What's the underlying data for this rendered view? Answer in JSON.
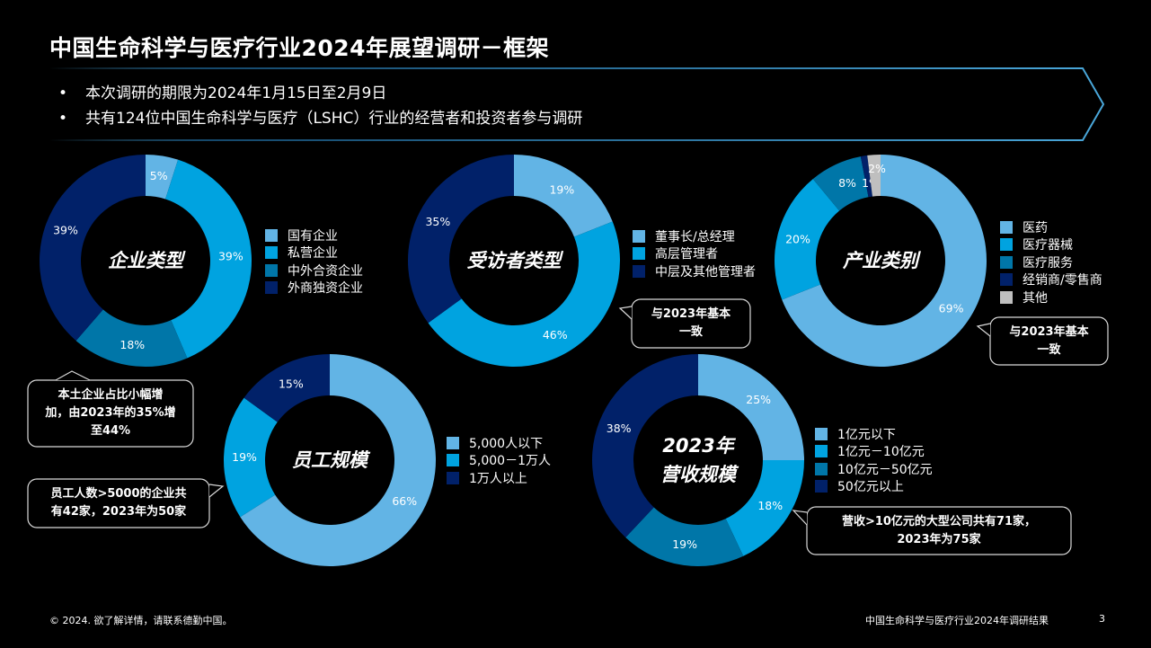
{
  "title": "中国生命科学与医疗行业2024年展望调研－框架",
  "bullets": [
    "本次调研的期限为2024年1月15日至2月9日",
    "共有124位中国生命科学与医疗（LSHC）行业的经营者和投资者参与调研"
  ],
  "colors": {
    "light_blue": "#62b4e5",
    "blue": "#00a3e0",
    "teal": "#0076a8",
    "navy": "#012169",
    "gray": "#bfbfbf",
    "banner_border": "#4aa8db"
  },
  "chart_data": [
    {
      "type": "pie",
      "donut": true,
      "title": "企业类型",
      "categories": [
        "国有企业",
        "私营企业",
        "中外合资企业",
        "外商独资企业"
      ],
      "values": [
        5,
        39,
        18,
        39
      ],
      "labels": [
        "5%",
        "39%",
        "18%",
        "39%"
      ],
      "colors": [
        "#62b4e5",
        "#00a3e0",
        "#0076a8",
        "#012169"
      ],
      "legend": "right"
    },
    {
      "type": "pie",
      "donut": true,
      "title": "受访者类型",
      "categories": [
        "董事长/总经理",
        "高层管理者",
        "中层及其他管理者"
      ],
      "values": [
        19,
        46,
        35
      ],
      "labels": [
        "19%",
        "46%",
        "35%"
      ],
      "colors": [
        "#62b4e5",
        "#00a3e0",
        "#012169"
      ],
      "legend": "right"
    },
    {
      "type": "pie",
      "donut": true,
      "title": "产业类别",
      "categories": [
        "医药",
        "医疗器械",
        "医疗服务",
        "经销商/零售商",
        "其他"
      ],
      "values": [
        69,
        20,
        8,
        1,
        2
      ],
      "labels": [
        "69%",
        "20%",
        "8%",
        "1%",
        "2%"
      ],
      "colors": [
        "#62b4e5",
        "#00a3e0",
        "#0076a8",
        "#012169",
        "#bfbfbf"
      ],
      "legend": "right"
    },
    {
      "type": "pie",
      "donut": true,
      "title": "员工规模",
      "categories": [
        "5,000人以下",
        "5,000－1万人",
        "1万人以上"
      ],
      "values": [
        66,
        19,
        15
      ],
      "labels": [
        "66%",
        "19%",
        "15%"
      ],
      "colors": [
        "#62b4e5",
        "#00a3e0",
        "#012169"
      ],
      "legend": "right"
    },
    {
      "type": "pie",
      "donut": true,
      "title": "2023年营收规模",
      "title_lines": [
        "2023年",
        "营收规模"
      ],
      "categories": [
        "1亿元以下",
        "1亿元－10亿元",
        "10亿元－50亿元",
        "50亿元以上"
      ],
      "values": [
        25,
        18,
        19,
        38
      ],
      "labels": [
        "25%",
        "18%",
        "19%",
        "38%"
      ],
      "colors": [
        "#62b4e5",
        "#00a3e0",
        "#0076a8",
        "#012169"
      ],
      "legend": "right"
    }
  ],
  "callouts": [
    {
      "lines": [
        "本土企业占比小幅增",
        "加，由2023年的35%增",
        "至44%"
      ]
    },
    {
      "lines": [
        "员工人数>5000的企业共",
        "有42家，2023年为50家"
      ]
    },
    {
      "lines": [
        "与2023年基本",
        "一致"
      ]
    },
    {
      "lines": [
        "与2023年基本",
        "一致"
      ]
    },
    {
      "lines": [
        "营收>10亿元的大型公司共有71家，",
        "2023年为75家"
      ]
    }
  ],
  "footer": {
    "left": "© 2024. 欲了解详情，请联系德勤中国。",
    "right": "中国生命科学与医疗行业2024年调研结果",
    "page": "3"
  }
}
